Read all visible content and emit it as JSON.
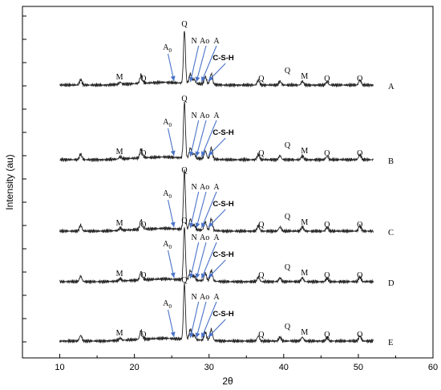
{
  "chart_data": {
    "type": "line",
    "title": "",
    "xlabel": "2θ",
    "ylabel": "Intensity (au)",
    "xlim": [
      5,
      60
    ],
    "x_ticks": [
      10,
      20,
      30,
      40,
      50,
      60
    ],
    "y_tick_labels": "none",
    "grid": false,
    "series": [
      {
        "name": "A"
      },
      {
        "name": "B"
      },
      {
        "name": "C"
      },
      {
        "name": "D"
      },
      {
        "name": "E"
      }
    ],
    "peaks": [
      {
        "two_theta": 12.8,
        "height": 0.1
      },
      {
        "two_theta": 18.1,
        "height": 0.04
      },
      {
        "two_theta": 20.9,
        "height": 0.16
      },
      {
        "two_theta": 26.7,
        "height": 1.0
      },
      {
        "two_theta": 27.5,
        "height": 0.18
      },
      {
        "two_theta": 28.0,
        "height": 0.08
      },
      {
        "two_theta": 29.5,
        "height": 0.14
      },
      {
        "two_theta": 30.3,
        "height": 0.2
      },
      {
        "two_theta": 36.6,
        "height": 0.09
      },
      {
        "two_theta": 39.5,
        "height": 0.07
      },
      {
        "two_theta": 42.5,
        "height": 0.07
      },
      {
        "two_theta": 45.8,
        "height": 0.06
      },
      {
        "two_theta": 50.2,
        "height": 0.09
      }
    ],
    "annotations": {
      "M": "M",
      "Q": "Q",
      "A0": "A",
      "A0_sub": "0",
      "N": "N",
      "Ao": "Ao",
      "A": "A",
      "CSH": "C-S-H"
    }
  }
}
